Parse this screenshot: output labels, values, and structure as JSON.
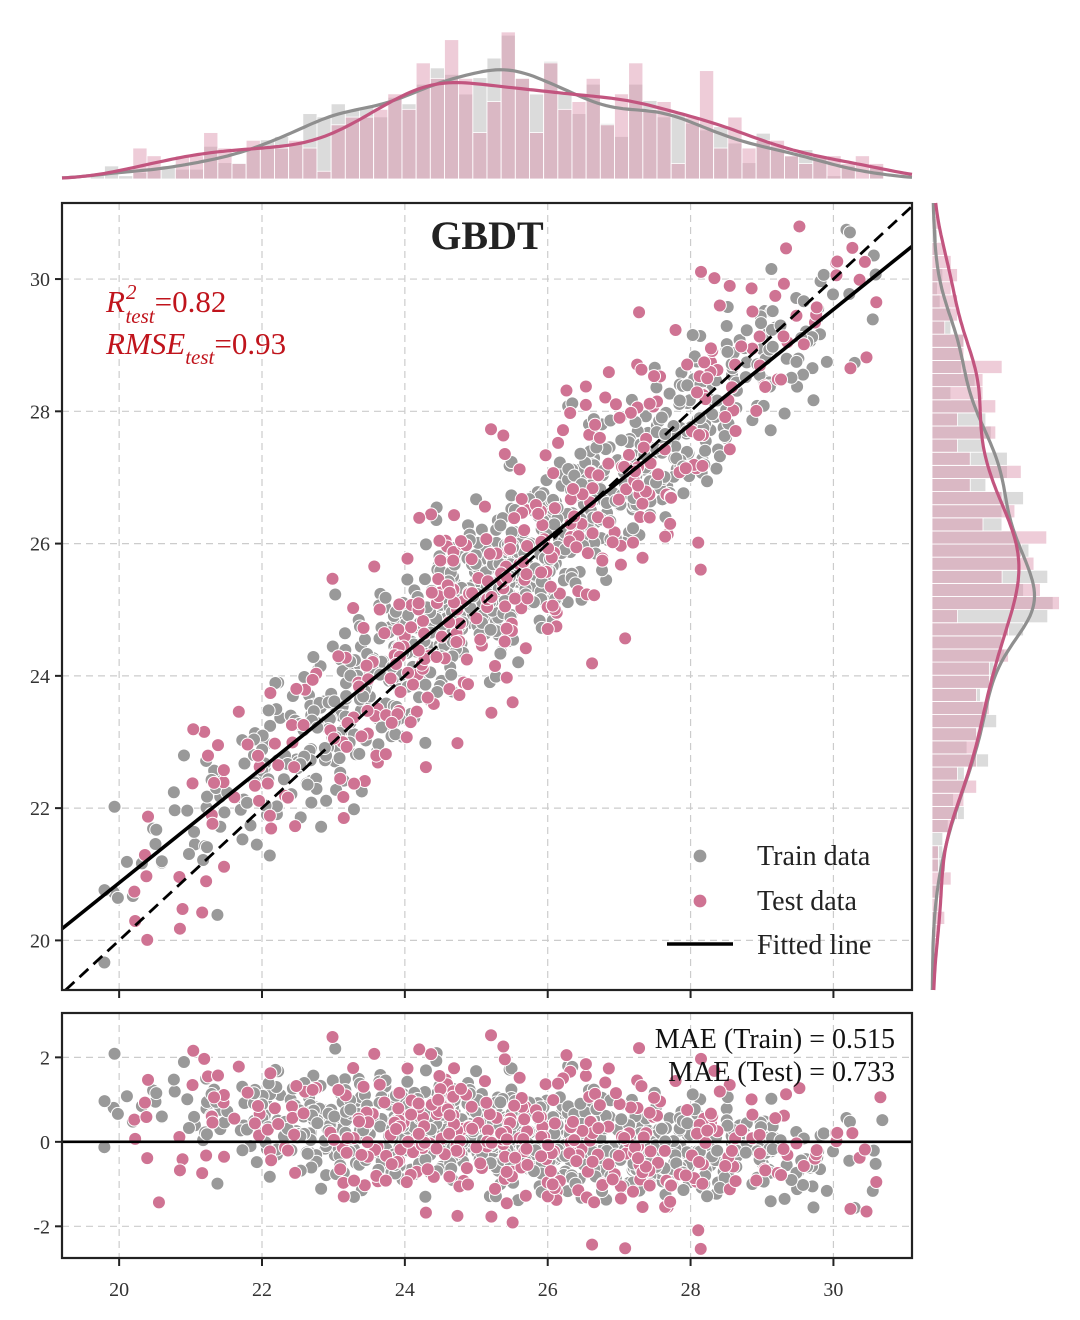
{
  "chart_data": {
    "type": "scatter",
    "title": "GBDT",
    "metrics": {
      "r2_symbol": "R",
      "r2_sup": "2",
      "r2_sub": "test",
      "r2_value": "=0.82",
      "rmse_symbol": "RMSE",
      "rmse_sub": "test",
      "rmse_value": "=0.93"
    },
    "mae_train": "MAE (Train) = 0.515",
    "mae_test": "MAE (Test) = 0.733",
    "legend": {
      "train": "Train data",
      "test": "Test data",
      "fit": "Fitted line"
    },
    "main_panel": {
      "xlim": [
        19.2,
        31.1
      ],
      "ylim": [
        19.25,
        31.15
      ],
      "xticks": [
        "20",
        "22",
        "24",
        "26",
        "28",
        "30"
      ],
      "yticks": [
        "20",
        "22",
        "24",
        "26",
        "28",
        "30"
      ],
      "identity_line": true,
      "fitted_line": {
        "slope": 0.867,
        "intercept": 3.53
      },
      "grid": true,
      "legend_position": "bottom-right"
    },
    "residual_panel": {
      "ylim": [
        -2.75,
        3.05
      ],
      "yticks": [
        "-2",
        "0",
        "2"
      ],
      "zero_line": true
    },
    "series": [
      {
        "name": "Train data",
        "color": "#999999",
        "points_note": "approx. 900 points, actual roughly 20 to 31, predicted along fitted line with spread ~0.65",
        "n": 900,
        "x_range": [
          19.7,
          30.7
        ],
        "x_center": 25.5,
        "x_spread": 2.3,
        "residual_sd": 0.62
      },
      {
        "name": "Test data",
        "color": "#cf7393",
        "n": 380,
        "x_range": [
          20.0,
          30.7
        ],
        "x_center": 25.7,
        "x_spread": 2.4,
        "residual_sd": 0.9
      }
    ],
    "colors": {
      "train": "#999999",
      "test": "#cf7393",
      "train_kde": "#8f8f8f",
      "test_kde": "#c2557f",
      "metric_text": "#c0141c",
      "line": "#000000"
    }
  }
}
